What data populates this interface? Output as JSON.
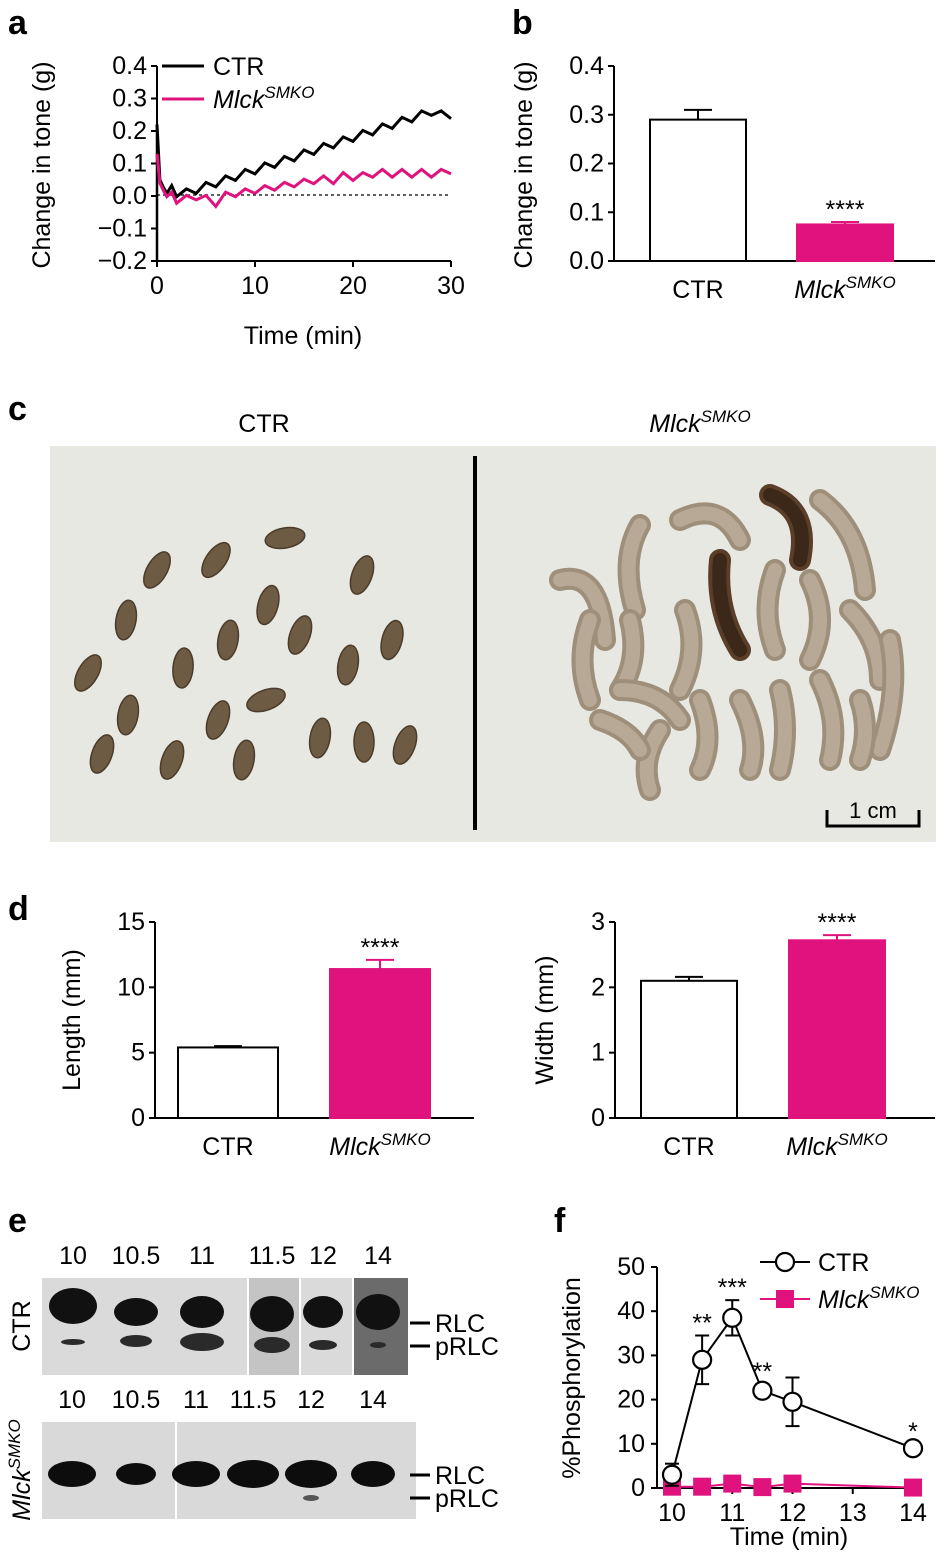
{
  "panels": {
    "a": "a",
    "b": "b",
    "c": "c",
    "d": "d",
    "e": "e",
    "f": "f"
  },
  "colors": {
    "ctr": "#000000",
    "mlck": "#e0137e",
    "bar_ctr_fill": "#ffffff"
  },
  "labels": {
    "ctr": "CTR",
    "mlck": "Mlck",
    "mlck_sup": "SMKO"
  },
  "chart_data": [
    {
      "panel": "a",
      "type": "line",
      "xlabel": "Time (min)",
      "ylabel": "Change in tone (g)",
      "xlim": [
        0,
        30
      ],
      "ylim": [
        -0.2,
        0.4
      ],
      "xticks": [
        0,
        10,
        20,
        30
      ],
      "yticks": [
        "0.4",
        "0.3",
        "0.2",
        "0.1",
        "0.0",
        "−0.1",
        "−0.2"
      ],
      "legend": "top-left",
      "reference_line": 0,
      "series": [
        {
          "name": "CTR",
          "x": [
            0,
            0.3,
            0.6,
            1,
            1.5,
            2,
            3,
            4,
            5,
            6,
            7,
            8,
            9,
            10,
            11,
            12,
            13,
            14,
            15,
            16,
            17,
            18,
            19,
            20,
            21,
            22,
            23,
            24,
            25,
            26,
            27,
            28,
            29,
            30
          ],
          "y": [
            0.22,
            0.05,
            0.03,
            0.02,
            0.02,
            0.01,
            0.01,
            0.02,
            0.03,
            0.04,
            0.05,
            0.06,
            0.07,
            0.08,
            0.09,
            0.1,
            0.11,
            0.12,
            0.13,
            0.14,
            0.15,
            0.16,
            0.17,
            0.18,
            0.19,
            0.2,
            0.21,
            0.22,
            0.23,
            0.24,
            0.25,
            0.26,
            0.25,
            0.25
          ]
        },
        {
          "name": "MlckSMKO",
          "x": [
            0,
            0.3,
            0.6,
            1,
            1.5,
            2,
            3,
            4,
            5,
            6,
            7,
            8,
            9,
            10,
            11,
            12,
            13,
            14,
            15,
            16,
            17,
            18,
            19,
            20,
            21,
            22,
            23,
            24,
            25,
            26,
            27,
            28,
            29,
            30
          ],
          "y": [
            0.13,
            0.04,
            0.02,
            0.01,
            0.0,
            -0.01,
            -0.01,
            0.0,
            -0.01,
            -0.02,
            0.0,
            0.01,
            0.01,
            0.02,
            0.02,
            0.03,
            0.03,
            0.04,
            0.04,
            0.05,
            0.05,
            0.05,
            0.06,
            0.06,
            0.06,
            0.07,
            0.07,
            0.07,
            0.07,
            0.07,
            0.07,
            0.07,
            0.07,
            0.08
          ]
        }
      ]
    },
    {
      "panel": "b",
      "type": "bar",
      "ylabel": "Change in tone (g)",
      "categories": [
        "CTR",
        "MlckSMKO"
      ],
      "values": [
        0.29,
        0.075
      ],
      "errors": [
        0.02,
        0.005
      ],
      "ylim": [
        0,
        0.4
      ],
      "yticks": [
        "0.0",
        "0.1",
        "0.2",
        "0.3",
        "0.4"
      ],
      "annotations": [
        "",
        "****"
      ]
    },
    {
      "panel": "d-left",
      "type": "bar",
      "ylabel": "Length (mm)",
      "categories": [
        "CTR",
        "MlckSMKO"
      ],
      "values": [
        5.4,
        11.4
      ],
      "errors": [
        0.1,
        0.7
      ],
      "ylim": [
        0,
        15
      ],
      "yticks": [
        "0",
        "5",
        "10",
        "15"
      ],
      "annotations": [
        "",
        "****"
      ]
    },
    {
      "panel": "d-right",
      "type": "bar",
      "ylabel": "Width (mm)",
      "categories": [
        "CTR",
        "MlckSMKO"
      ],
      "values": [
        2.1,
        2.72
      ],
      "errors": [
        0.06,
        0.08
      ],
      "ylim": [
        0,
        3
      ],
      "yticks": [
        "0",
        "1",
        "2",
        "3"
      ],
      "annotations": [
        "",
        "****"
      ]
    },
    {
      "panel": "f",
      "type": "line",
      "xlabel": "Time (min)",
      "ylabel": "%Phosphorylation",
      "xlim": [
        10,
        14
      ],
      "ylim": [
        0,
        50
      ],
      "xticks": [
        "10",
        "11",
        "12",
        "13",
        "14"
      ],
      "yticks": [
        "0",
        "10",
        "20",
        "30",
        "40",
        "50"
      ],
      "legend": "top-right",
      "series": [
        {
          "name": "CTR",
          "x": [
            10,
            10.5,
            11,
            11.5,
            12,
            14
          ],
          "y": [
            3,
            29,
            38.5,
            22,
            19.5,
            9
          ],
          "errors": [
            2.5,
            5.5,
            4,
            1.5,
            5.5,
            1
          ],
          "annotations": [
            "",
            "**",
            "***",
            "**",
            "",
            "*"
          ]
        },
        {
          "name": "MlckSMKO",
          "x": [
            10,
            10.5,
            11,
            11.5,
            12,
            14
          ],
          "y": [
            0.3,
            0.3,
            1,
            0.2,
            1,
            0.1
          ],
          "errors": [
            0.3,
            0.3,
            0.5,
            0.3,
            0.5,
            0.2
          ]
        }
      ]
    }
  ],
  "photo": {
    "left_title": "CTR",
    "right_title": "MlckSMKO",
    "scale_bar": "1 cm"
  },
  "blot": {
    "lane_labels_ctr": [
      "10",
      "10.5",
      "11",
      "11.5",
      "12",
      "14"
    ],
    "lane_labels_mlck": [
      "10",
      "10.5",
      "11",
      "11.5",
      "12",
      "14"
    ],
    "band_rlc": "RLC",
    "band_prlc": "pRLC"
  }
}
